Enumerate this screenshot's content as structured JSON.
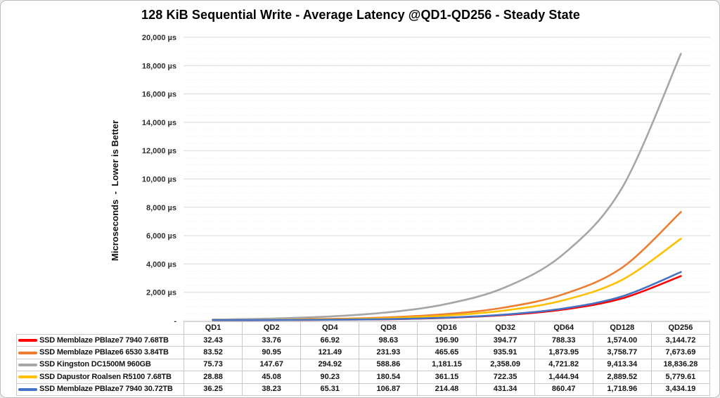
{
  "chart_data": {
    "type": "line",
    "title": "128 KiB Sequential Write - Average Latency @QD1-QD256 - Steady State",
    "ylabel": "Microseconds  -  Lower is Better",
    "xlabel": "",
    "ylim": [
      0,
      20000
    ],
    "y_major_unit": 2000,
    "y_minor_unit": 500,
    "y_tick_labels": [
      "-",
      "2,000 µs",
      "4,000 µs",
      "6,000 µs",
      "8,000 µs",
      "10,000 µs",
      "12,000 µs",
      "14,000 µs",
      "16,000 µs",
      "18,000 µs",
      "20,000 µs"
    ],
    "grid": true,
    "legend_position": "table-left",
    "categories": [
      "QD1",
      "QD2",
      "QD4",
      "QD8",
      "QD16",
      "QD32",
      "QD64",
      "QD128",
      "QD256"
    ],
    "series": [
      {
        "name": "SSD Memblaze PBlaze7 7940 7.68TB",
        "color": "#FF0000",
        "values": [
          32.43,
          33.76,
          66.92,
          98.63,
          196.9,
          394.77,
          788.33,
          1574.0,
          3144.72
        ]
      },
      {
        "name": "SSD Memblaze PBlaze6 6530 3.84TB",
        "color": "#ED7D31",
        "values": [
          83.52,
          90.95,
          121.49,
          231.93,
          465.65,
          935.91,
          1873.95,
          3758.77,
          7673.69
        ]
      },
      {
        "name": "SSD Kingston DC1500M 960GB",
        "color": "#A6A6A6",
        "values": [
          75.73,
          147.67,
          294.92,
          588.86,
          1181.15,
          2358.09,
          4721.82,
          9413.34,
          18836.28
        ]
      },
      {
        "name": "SSD Dapustor Roalsen R5100 7.68TB",
        "color": "#FFC000",
        "values": [
          28.88,
          45.08,
          90.23,
          180.54,
          361.15,
          722.35,
          1444.94,
          2889.52,
          5779.61
        ]
      },
      {
        "name": "SSD Memblaze PBlaze7 7940 30.72TB",
        "color": "#4472C4",
        "values": [
          36.25,
          38.23,
          65.31,
          106.87,
          214.48,
          431.34,
          860.47,
          1718.96,
          3434.19
        ]
      }
    ]
  },
  "table": {
    "header": [
      "QD1",
      "QD2",
      "QD4",
      "QD8",
      "QD16",
      "QD32",
      "QD64",
      "QD128",
      "QD256"
    ],
    "rows": [
      {
        "label": "SSD Memblaze PBlaze7 7940 7.68TB",
        "color": "#FF0000",
        "cells": [
          "32.43",
          "33.76",
          "66.92",
          "98.63",
          "196.90",
          "394.77",
          "788.33",
          "1,574.00",
          "3,144.72"
        ]
      },
      {
        "label": "SSD Memblaze PBlaze6 6530 3.84TB",
        "color": "#ED7D31",
        "cells": [
          "83.52",
          "90.95",
          "121.49",
          "231.93",
          "465.65",
          "935.91",
          "1,873.95",
          "3,758.77",
          "7,673.69"
        ]
      },
      {
        "label": "SSD Kingston DC1500M 960GB",
        "color": "#A6A6A6",
        "cells": [
          "75.73",
          "147.67",
          "294.92",
          "588.86",
          "1,181.15",
          "2,358.09",
          "4,721.82",
          "9,413.34",
          "18,836.28"
        ]
      },
      {
        "label": "SSD Dapustor Roalsen R5100 7.68TB",
        "color": "#FFC000",
        "cells": [
          "28.88",
          "45.08",
          "90.23",
          "180.54",
          "361.15",
          "722.35",
          "1,444.94",
          "2,889.52",
          "5,779.61"
        ]
      },
      {
        "label": "SSD Memblaze PBlaze7 7940 30.72TB",
        "color": "#4472C4",
        "cells": [
          "36.25",
          "38.23",
          "65.31",
          "106.87",
          "214.48",
          "431.34",
          "860.47",
          "1,718.96",
          "3,434.19"
        ]
      }
    ]
  },
  "colors": {
    "major_gridline": "#D9D9D9",
    "minor_gridline": "#ECECEC",
    "table_border": "#C9C9C9",
    "frame_border": "#BDBDBD"
  }
}
